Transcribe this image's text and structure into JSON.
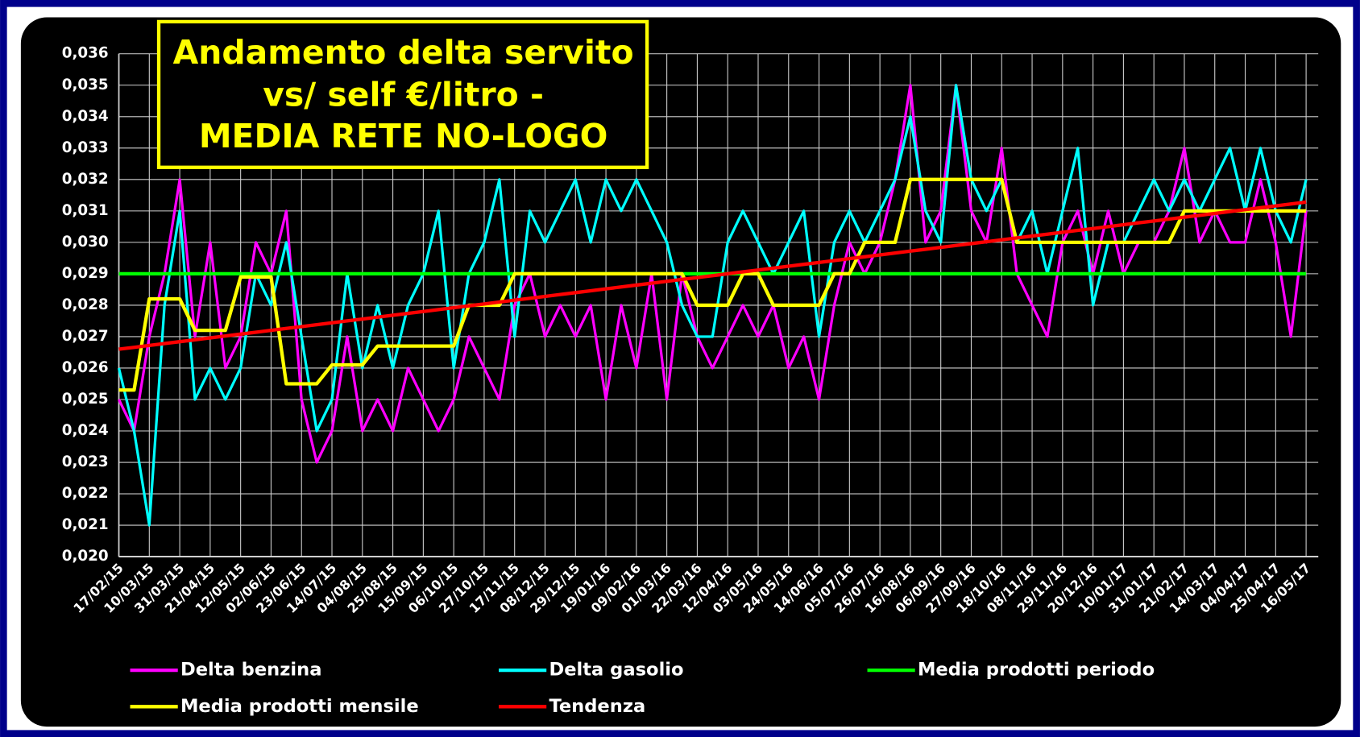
{
  "chart_data": {
    "type": "line",
    "title": [
      "Andamento delta servito",
      "vs/ self €/litro -",
      "MEDIA RETE NO-LOGO"
    ],
    "categories": [
      "17/02/15",
      null,
      "10/03/15",
      null,
      "31/03/15",
      null,
      "21/04/15",
      null,
      "12/05/15",
      null,
      "02/06/15",
      null,
      "23/06/15",
      null,
      "14/07/15",
      null,
      "04/08/15",
      null,
      "25/08/15",
      null,
      "15/09/15",
      null,
      "06/10/15",
      null,
      "27/10/15",
      null,
      "17/11/15",
      null,
      "08/12/15",
      null,
      "29/12/15",
      null,
      "19/01/16",
      null,
      "09/02/16",
      null,
      "01/03/16",
      null,
      "22/03/16",
      null,
      "12/04/16",
      null,
      "03/05/16",
      null,
      "24/05/16",
      null,
      "14/06/16",
      null,
      "05/07/16",
      null,
      "26/07/16",
      null,
      "16/08/16",
      null,
      "06/09/16",
      null,
      "27/09/16",
      null,
      "18/10/16",
      null,
      "08/11/16",
      null,
      "29/11/16",
      null,
      "20/12/16",
      null,
      "10/01/17",
      null,
      "31/01/17",
      null,
      "21/02/17",
      null,
      "14/03/17",
      null,
      "04/04/17",
      null,
      "25/04/17",
      null,
      "16/05/17"
    ],
    "series": [
      {
        "name": "Delta benzina",
        "color": "#ff00ff",
        "values": [
          0.025,
          0.024,
          0.027,
          0.029,
          0.032,
          0.027,
          0.03,
          0.026,
          0.027,
          0.03,
          0.029,
          0.031,
          0.025,
          0.023,
          0.024,
          0.027,
          0.024,
          0.025,
          0.024,
          0.026,
          0.025,
          0.024,
          0.025,
          0.027,
          0.026,
          0.025,
          0.028,
          0.029,
          0.027,
          0.028,
          0.027,
          0.028,
          0.025,
          0.028,
          0.026,
          0.029,
          0.025,
          0.029,
          0.027,
          0.026,
          0.027,
          0.028,
          0.027,
          0.028,
          0.026,
          0.027,
          0.025,
          0.028,
          0.03,
          0.029,
          0.03,
          0.032,
          0.035,
          0.03,
          0.031,
          0.035,
          0.031,
          0.03,
          0.033,
          0.029,
          0.028,
          0.027,
          0.03,
          0.031,
          0.029,
          0.031,
          0.029,
          0.03,
          0.03,
          0.031,
          0.033,
          0.03,
          0.031,
          0.03,
          0.03,
          0.032,
          0.03,
          0.027,
          0.031
        ]
      },
      {
        "name": "Delta gasolio",
        "color": "#00ffff",
        "values": [
          0.026,
          0.024,
          0.021,
          0.028,
          0.031,
          0.025,
          0.026,
          0.025,
          0.026,
          0.029,
          0.028,
          0.03,
          0.027,
          0.024,
          0.025,
          0.029,
          0.026,
          0.028,
          0.026,
          0.028,
          0.029,
          0.031,
          0.026,
          0.029,
          0.03,
          0.032,
          0.027,
          0.031,
          0.03,
          0.031,
          0.032,
          0.03,
          0.032,
          0.031,
          0.032,
          0.031,
          0.03,
          0.028,
          0.027,
          0.027,
          0.03,
          0.031,
          0.03,
          0.029,
          0.03,
          0.031,
          0.027,
          0.03,
          0.031,
          0.03,
          0.031,
          0.032,
          0.034,
          0.031,
          0.03,
          0.035,
          0.032,
          0.031,
          0.032,
          0.03,
          0.031,
          0.029,
          0.031,
          0.033,
          0.028,
          0.03,
          0.03,
          0.031,
          0.032,
          0.031,
          0.032,
          0.031,
          0.032,
          0.033,
          0.031,
          0.033,
          0.031,
          0.03,
          0.032
        ]
      },
      {
        "name": "Media prodotti periodo",
        "color": "#00ff00",
        "values": [
          0.029,
          0.029,
          0.029,
          0.029,
          0.029,
          0.029,
          0.029,
          0.029,
          0.029,
          0.029,
          0.029,
          0.029,
          0.029,
          0.029,
          0.029,
          0.029,
          0.029,
          0.029,
          0.029,
          0.029,
          0.029,
          0.029,
          0.029,
          0.029,
          0.029,
          0.029,
          0.029,
          0.029,
          0.029,
          0.029,
          0.029,
          0.029,
          0.029,
          0.029,
          0.029,
          0.029,
          0.029,
          0.029,
          0.029,
          0.029,
          0.029,
          0.029,
          0.029,
          0.029,
          0.029,
          0.029,
          0.029,
          0.029,
          0.029,
          0.029,
          0.029,
          0.029,
          0.029,
          0.029,
          0.029,
          0.029,
          0.029,
          0.029,
          0.029,
          0.029,
          0.029,
          0.029,
          0.029,
          0.029,
          0.029,
          0.029,
          0.029,
          0.029,
          0.029,
          0.029,
          0.029,
          0.029,
          0.029,
          0.029,
          0.029,
          0.029,
          0.029,
          0.029,
          0.029
        ]
      },
      {
        "name": "Media prodotti mensile",
        "color": "#ffff00",
        "values": [
          0.0253,
          0.0253,
          0.0282,
          0.0282,
          0.0282,
          0.0272,
          0.0272,
          0.0272,
          0.0289,
          0.0289,
          0.0289,
          0.0255,
          0.0255,
          0.0255,
          0.0261,
          0.0261,
          0.0261,
          0.0267,
          0.0267,
          0.0267,
          0.0267,
          0.0267,
          0.0267,
          0.028,
          0.028,
          0.028,
          0.029,
          0.029,
          0.029,
          0.029,
          0.029,
          0.029,
          0.029,
          0.029,
          0.029,
          0.029,
          0.029,
          0.029,
          0.028,
          0.028,
          0.028,
          0.029,
          0.029,
          0.028,
          0.028,
          0.028,
          0.028,
          0.029,
          0.029,
          0.03,
          0.03,
          0.03,
          0.032,
          0.032,
          0.032,
          0.032,
          0.032,
          0.032,
          0.032,
          0.03,
          0.03,
          0.03,
          0.03,
          0.03,
          0.03,
          0.03,
          0.03,
          0.03,
          0.03,
          0.03,
          0.031,
          0.031,
          0.031,
          0.031,
          0.031,
          0.031,
          0.031,
          0.031,
          0.031
        ]
      },
      {
        "name": "Tendenza",
        "color": "#ff0000",
        "values": [
          0.0266,
          0.02666,
          0.02672,
          0.02678,
          0.02684,
          0.0269,
          0.02696,
          0.02702,
          0.02708,
          0.02714,
          0.0272,
          0.02726,
          0.02732,
          0.02738,
          0.02744,
          0.0275,
          0.02756,
          0.02762,
          0.02768,
          0.02774,
          0.0278,
          0.02786,
          0.02792,
          0.02798,
          0.02804,
          0.0281,
          0.02816,
          0.02822,
          0.02828,
          0.02834,
          0.0284,
          0.02846,
          0.02852,
          0.02858,
          0.02864,
          0.0287,
          0.02876,
          0.02882,
          0.02888,
          0.02894,
          0.029,
          0.02906,
          0.02912,
          0.02918,
          0.02924,
          0.0293,
          0.02936,
          0.02942,
          0.02948,
          0.02954,
          0.0296,
          0.02966,
          0.02972,
          0.02978,
          0.02984,
          0.0299,
          0.02996,
          0.03002,
          0.03008,
          0.03014,
          0.0302,
          0.03026,
          0.03032,
          0.03038,
          0.03044,
          0.0305,
          0.03056,
          0.03062,
          0.03068,
          0.03074,
          0.0308,
          0.03086,
          0.03092,
          0.03098,
          0.03104,
          0.0311,
          0.03116,
          0.03122,
          0.03128
        ]
      }
    ],
    "ylim": [
      0.02,
      0.036
    ],
    "yticks": [
      {
        "value": 0.02,
        "label": "0,020"
      },
      {
        "value": 0.021,
        "label": "0,021"
      },
      {
        "value": 0.022,
        "label": "0,022"
      },
      {
        "value": 0.023,
        "label": "0,023"
      },
      {
        "value": 0.024,
        "label": "0,024"
      },
      {
        "value": 0.025,
        "label": "0,025"
      },
      {
        "value": 0.026,
        "label": "0,026"
      },
      {
        "value": 0.027,
        "label": "0,027"
      },
      {
        "value": 0.028,
        "label": "0,028"
      },
      {
        "value": 0.029,
        "label": "0,029"
      },
      {
        "value": 0.03,
        "label": "0,030"
      },
      {
        "value": 0.031,
        "label": "0,031"
      },
      {
        "value": 0.032,
        "label": "0,032"
      },
      {
        "value": 0.033,
        "label": "0,033"
      },
      {
        "value": 0.034,
        "label": "0,034"
      },
      {
        "value": 0.035,
        "label": "0,035"
      },
      {
        "value": 0.036,
        "label": "0,036"
      }
    ],
    "grid": true,
    "legend": "bottom"
  }
}
